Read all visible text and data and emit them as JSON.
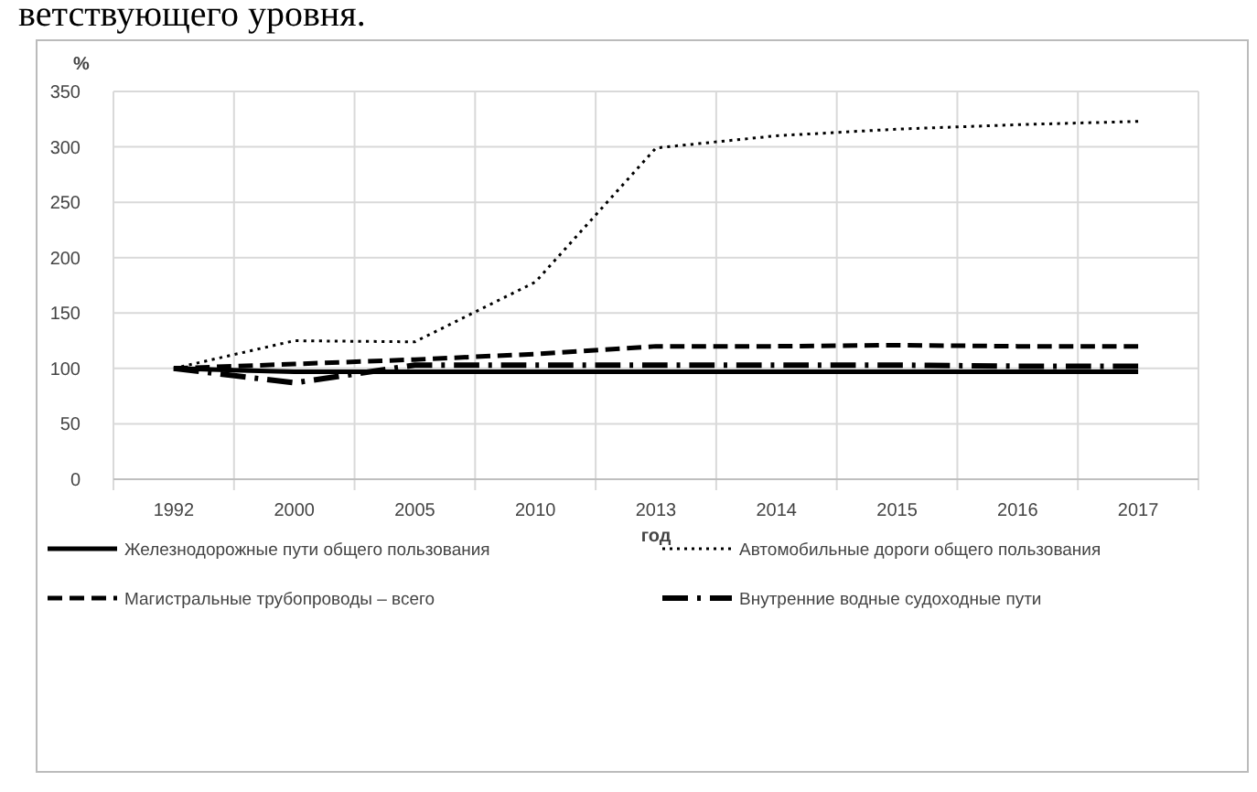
{
  "chart_data": {
    "type": "line",
    "annotations": [
      "ветствующего уровня."
    ],
    "ylabel": "%",
    "xlabel": "год",
    "categories": [
      "1992",
      "2000",
      "2005",
      "2010",
      "2013",
      "2014",
      "2015",
      "2016",
      "2017"
    ],
    "ylim": [
      0,
      350
    ],
    "yticks": [
      0,
      50,
      100,
      150,
      200,
      250,
      300,
      350
    ],
    "grid": true,
    "legend": "bottom",
    "series": [
      {
        "name": "Железнодорожные пути общего пользования",
        "color": "#000000",
        "line_style": "solid",
        "values": [
          100,
          97,
          97,
          97,
          97,
          97,
          97,
          97,
          97
        ]
      },
      {
        "name": "Автомобильные дороги общего пользования",
        "color": "#000000",
        "line_style": "dotted",
        "values": [
          100,
          125,
          124,
          178,
          299,
          310,
          316,
          320,
          323
        ]
      },
      {
        "name": "Магистральные трубопроводы – всего",
        "color": "#000000",
        "line_style": "dashed",
        "values": [
          100,
          104,
          108,
          113,
          120,
          120,
          121,
          120,
          120
        ]
      },
      {
        "name": "Внутренние водные судоходные пути",
        "color": "#000000",
        "line_style": "dashdot",
        "values": [
          100,
          87,
          103,
          103,
          103,
          103,
          103,
          102,
          102
        ]
      }
    ]
  }
}
